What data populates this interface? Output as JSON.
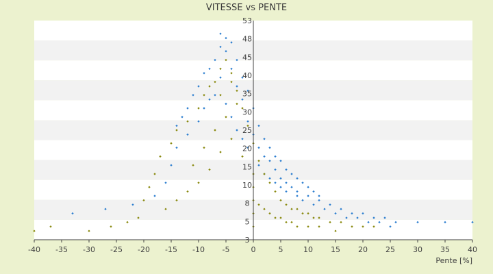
{
  "chart_data": {
    "type": "scatter",
    "title": "VITESSE vs PENTE",
    "xlabel": "Pente [%]",
    "ylabel": "",
    "xlim": [
      -40,
      40
    ],
    "ylim": [
      3,
      53
    ],
    "x_ticks": [
      "-40",
      "-35",
      "-30",
      "-25",
      "-20",
      "-15",
      "-10",
      "-5",
      "0",
      "5",
      "10",
      "15",
      "20",
      "25",
      "30",
      "35",
      "40"
    ],
    "y_tick_labels": [
      "53",
      "48",
      "45",
      "40",
      "35",
      "30",
      "25",
      "20",
      "15",
      "10",
      "8",
      "5",
      "3"
    ],
    "grid": "horizontal alternating bands",
    "legend": "none",
    "colors": {
      "page_bg": "#ecf2cf",
      "band_white": "#ffffff",
      "band_grey": "#f2f2f2",
      "axis": "#404040",
      "series_blue": "#2e7fd0",
      "series_olive": "#8a8a10"
    },
    "series": [
      {
        "color": "#2e7fd0",
        "points": [
          [
            -6,
            50
          ],
          [
            -5,
            49
          ],
          [
            -4,
            48
          ],
          [
            -6,
            47
          ],
          [
            -5,
            46
          ],
          [
            -7,
            44
          ],
          [
            -8,
            42
          ],
          [
            -9,
            41
          ],
          [
            -10,
            38
          ],
          [
            -11,
            36
          ],
          [
            -12,
            33
          ],
          [
            -13,
            31
          ],
          [
            -14,
            29
          ],
          [
            -8,
            35
          ],
          [
            -6,
            40
          ],
          [
            -4,
            42
          ],
          [
            -3,
            38
          ],
          [
            -2,
            35
          ],
          [
            -1,
            30
          ],
          [
            0,
            27
          ],
          [
            1,
            24
          ],
          [
            2,
            22
          ],
          [
            3,
            21
          ],
          [
            4,
            19
          ],
          [
            5,
            17
          ],
          [
            6,
            16
          ],
          [
            7,
            15
          ],
          [
            8,
            14
          ],
          [
            10,
            13
          ],
          [
            12,
            12
          ],
          [
            14,
            11
          ],
          [
            16,
            10
          ],
          [
            18,
            9
          ],
          [
            20,
            9
          ],
          [
            22,
            8
          ],
          [
            24,
            8
          ],
          [
            26,
            7
          ],
          [
            30,
            7
          ],
          [
            35,
            7
          ],
          [
            40,
            7
          ],
          [
            -33,
            9
          ],
          [
            -27,
            10
          ],
          [
            -22,
            11
          ],
          [
            -18,
            13
          ],
          [
            -16,
            16
          ],
          [
            -15,
            20
          ],
          [
            -14,
            24
          ],
          [
            -12,
            27
          ],
          [
            -10,
            30
          ],
          [
            -9,
            33
          ],
          [
            -7,
            36
          ],
          [
            -5,
            34
          ],
          [
            -4,
            31
          ],
          [
            -3,
            28
          ],
          [
            -2,
            26
          ],
          [
            -1,
            24
          ],
          [
            1,
            20
          ],
          [
            2,
            18
          ],
          [
            3,
            17
          ],
          [
            4,
            16
          ],
          [
            5,
            15
          ],
          [
            6,
            14
          ],
          [
            8,
            13
          ],
          [
            9,
            12
          ],
          [
            11,
            11
          ],
          [
            13,
            10
          ],
          [
            15,
            9
          ],
          [
            17,
            8
          ],
          [
            19,
            8
          ],
          [
            21,
            7
          ],
          [
            23,
            7
          ],
          [
            25,
            6
          ],
          [
            -3,
            44
          ],
          [
            -2,
            40
          ],
          [
            -1,
            37
          ],
          [
            0,
            33
          ],
          [
            1,
            29
          ],
          [
            2,
            26
          ],
          [
            3,
            24
          ],
          [
            4,
            22
          ],
          [
            5,
            21
          ],
          [
            6,
            19
          ],
          [
            7,
            18
          ],
          [
            8,
            17
          ],
          [
            9,
            16
          ],
          [
            10,
            15
          ],
          [
            11,
            14
          ],
          [
            12,
            13
          ]
        ]
      },
      {
        "color": "#8a8a10",
        "points": [
          [
            -40,
            5
          ],
          [
            -37,
            6
          ],
          [
            -30,
            5
          ],
          [
            -26,
            6
          ],
          [
            -23,
            7
          ],
          [
            -21,
            8
          ],
          [
            -20,
            12
          ],
          [
            -19,
            15
          ],
          [
            -18,
            18
          ],
          [
            -17,
            22
          ],
          [
            -15,
            25
          ],
          [
            -14,
            28
          ],
          [
            -12,
            30
          ],
          [
            -10,
            33
          ],
          [
            -9,
            36
          ],
          [
            -7,
            39
          ],
          [
            -6,
            42
          ],
          [
            -5,
            44
          ],
          [
            -4,
            41
          ],
          [
            -3,
            37
          ],
          [
            -2,
            33
          ],
          [
            -1,
            29
          ],
          [
            0,
            25
          ],
          [
            1,
            21
          ],
          [
            2,
            18
          ],
          [
            3,
            16
          ],
          [
            4,
            14
          ],
          [
            5,
            12
          ],
          [
            6,
            11
          ],
          [
            7,
            10
          ],
          [
            8,
            10
          ],
          [
            9,
            9
          ],
          [
            10,
            9
          ],
          [
            11,
            8
          ],
          [
            12,
            8
          ],
          [
            14,
            7
          ],
          [
            16,
            7
          ],
          [
            18,
            6
          ],
          [
            20,
            6
          ],
          [
            22,
            6
          ],
          [
            -16,
            10
          ],
          [
            -14,
            12
          ],
          [
            -12,
            14
          ],
          [
            -10,
            16
          ],
          [
            -8,
            19
          ],
          [
            -6,
            23
          ],
          [
            -4,
            26
          ],
          [
            -2,
            22
          ],
          [
            0,
            18
          ],
          [
            0,
            15
          ],
          [
            0,
            12
          ],
          [
            0,
            9
          ],
          [
            0,
            6
          ],
          [
            1,
            11
          ],
          [
            2,
            10
          ],
          [
            3,
            9
          ],
          [
            4,
            8
          ],
          [
            5,
            8
          ],
          [
            6,
            7
          ],
          [
            7,
            7
          ],
          [
            8,
            6
          ],
          [
            10,
            6
          ],
          [
            12,
            6
          ],
          [
            15,
            5
          ],
          [
            -11,
            20
          ],
          [
            -9,
            24
          ],
          [
            -7,
            28
          ],
          [
            -5,
            31
          ],
          [
            -3,
            34
          ],
          [
            -8,
            38
          ],
          [
            -6,
            36
          ],
          [
            -4,
            39
          ]
        ]
      }
    ]
  }
}
